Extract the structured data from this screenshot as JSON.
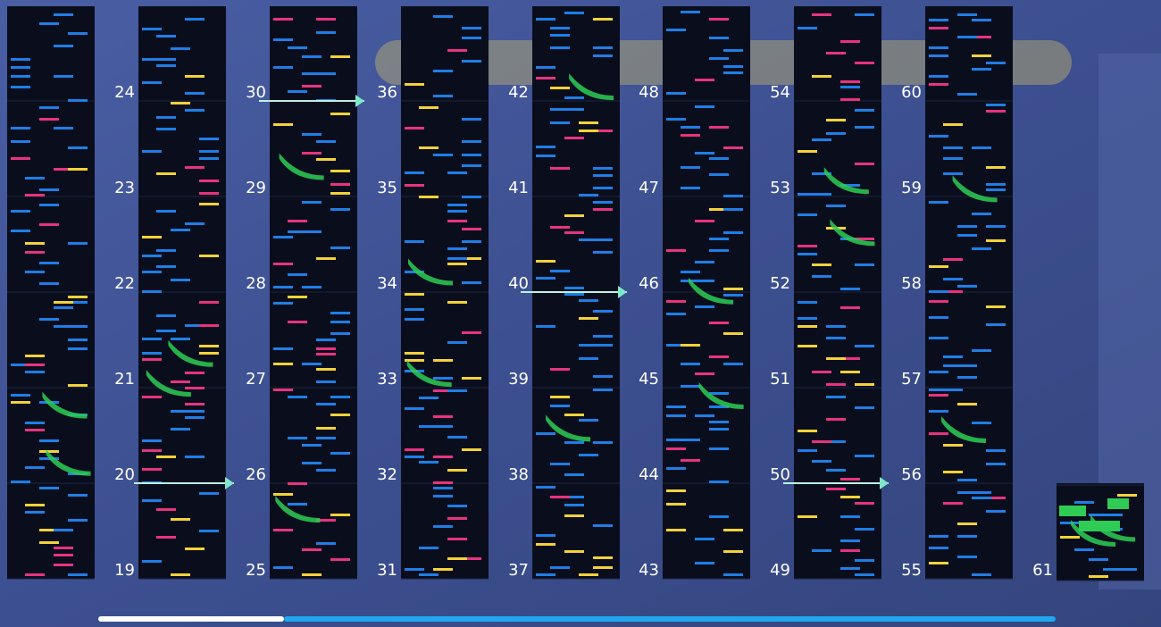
{
  "columns": [
    [
      19,
      20,
      21,
      22,
      23,
      24
    ],
    [
      25,
      26,
      27,
      28,
      29,
      30
    ],
    [
      31,
      32,
      33,
      34,
      35,
      36
    ],
    [
      37,
      38,
      39,
      40,
      41,
      42
    ],
    [
      43,
      44,
      45,
      46,
      47,
      48
    ],
    [
      49,
      50,
      51,
      52,
      53,
      54
    ],
    [
      55,
      56,
      57,
      58,
      59,
      60
    ]
  ],
  "last_column": [
    61
  ]
}
